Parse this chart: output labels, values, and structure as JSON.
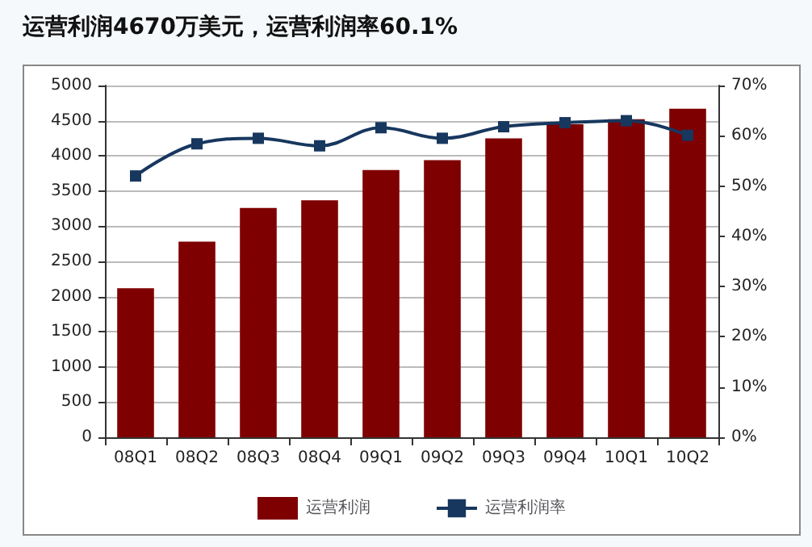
{
  "chart_data": {
    "type": "bar",
    "title": "运营利润4670万美元，运营利润率60.1%",
    "categories": [
      "08Q1",
      "08Q2",
      "08Q3",
      "08Q4",
      "09Q1",
      "09Q2",
      "09Q3",
      "09Q4",
      "10Q1",
      "10Q2"
    ],
    "series": [
      {
        "name": "运营利润",
        "color": "#7f0000",
        "values": [
          2120,
          2780,
          3260,
          3370,
          3800,
          3940,
          4250,
          4450,
          4520,
          4670
        ]
      },
      {
        "name": "运营利润率",
        "type": "line",
        "axis": "y2",
        "color": "#17375e",
        "values": [
          52,
          58.4,
          59.5,
          58,
          61.6,
          59.5,
          61.8,
          62.6,
          63,
          60.1
        ]
      }
    ],
    "ylim": [
      0,
      5000
    ],
    "yticks": [
      0,
      500,
      1000,
      1500,
      2000,
      2500,
      3000,
      3500,
      4000,
      4500,
      5000
    ],
    "y2lim": [
      0,
      70
    ],
    "y2ticks": [
      {
        "value": 0,
        "label": "0%"
      },
      {
        "value": 10,
        "label": "10%"
      },
      {
        "value": 20,
        "label": "20%"
      },
      {
        "value": 30,
        "label": "30%"
      },
      {
        "value": 40,
        "label": "40%"
      },
      {
        "value": 50,
        "label": "50%"
      },
      {
        "value": 60,
        "label": "60%"
      },
      {
        "value": 70,
        "label": "70%"
      }
    ],
    "grid": "y",
    "legend": "bottom",
    "marker": "square"
  }
}
